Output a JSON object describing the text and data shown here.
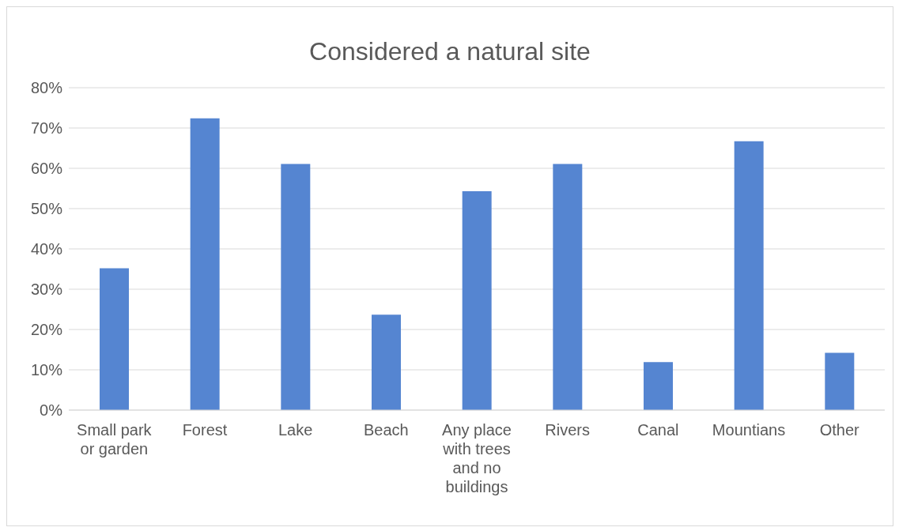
{
  "chart_data": {
    "type": "bar",
    "title": "Considered a natural site",
    "categories": [
      "Small park or garden",
      "Forest",
      "Lake",
      "Beach",
      "Any place with trees and no buildings",
      "Rivers",
      "Canal",
      "Mountians",
      "Other"
    ],
    "values": [
      35.2,
      72.4,
      61.1,
      23.7,
      54.3,
      61.1,
      11.9,
      66.7,
      14.2
    ],
    "color": "#5585d1",
    "ylim": [
      0,
      80
    ],
    "yticks": [
      {
        "value": 0,
        "label": "0%"
      },
      {
        "value": 10,
        "label": "10%"
      },
      {
        "value": 20,
        "label": "20%"
      },
      {
        "value": 30,
        "label": "30%"
      },
      {
        "value": 40,
        "label": "40%"
      },
      {
        "value": 50,
        "label": "50%"
      },
      {
        "value": 60,
        "label": "60%"
      },
      {
        "value": 70,
        "label": "70%"
      },
      {
        "value": 80,
        "label": "80%"
      }
    ],
    "grid": "y",
    "legend": false
  }
}
